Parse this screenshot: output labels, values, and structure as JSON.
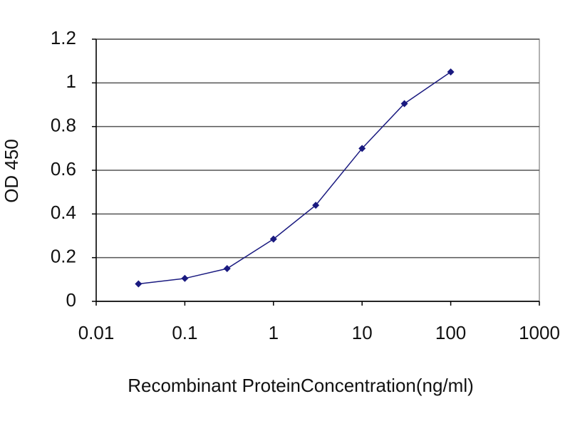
{
  "chart_data": {
    "type": "line",
    "x_label": "Recombinant ProteinConcentration(ng/ml)",
    "y_label": "OD 450",
    "x": [
      0.03,
      0.1,
      0.3,
      1,
      3,
      10,
      30,
      100
    ],
    "series": [
      {
        "color": "#1a1a80",
        "values": [
          0.08,
          0.105,
          0.15,
          0.285,
          0.44,
          0.7,
          0.905,
          1.05
        ]
      }
    ],
    "xlim": [
      0.01,
      1000
    ],
    "xticks": [
      0.01,
      0.1,
      1,
      10,
      100,
      1000
    ],
    "xscale": "log",
    "ylim": [
      0,
      1.2
    ],
    "yticks": [
      0,
      0.2,
      0.4,
      0.6,
      0.8,
      1,
      1.2
    ],
    "grid": true
  }
}
